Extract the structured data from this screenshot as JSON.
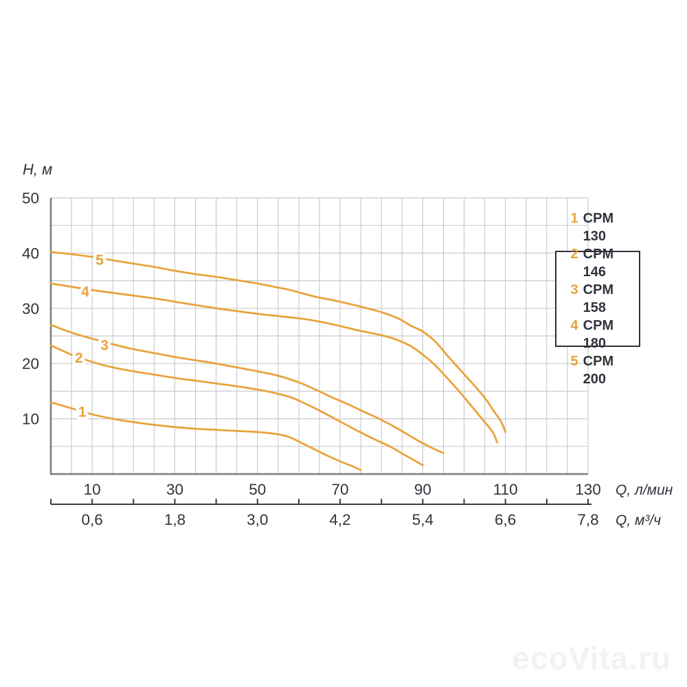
{
  "chart_data": {
    "type": "line",
    "title": "",
    "ylabel": "H, м",
    "xlabel_primary": "Q, л/мин",
    "xlabel_secondary": "Q, м³/ч",
    "xlim": [
      0,
      130
    ],
    "ylim": [
      0,
      50
    ],
    "grid": true,
    "grid_step_x": 5,
    "grid_step_y": 5,
    "y_ticks": [
      50,
      40,
      30,
      20,
      10
    ],
    "x_ticks_primary": [
      10,
      30,
      50,
      70,
      90,
      110,
      130
    ],
    "x_ticks_secondary": {
      "positions": [
        10,
        30,
        50,
        70,
        90,
        110,
        130
      ],
      "labels": [
        "0,6",
        "1,8",
        "3,0",
        "4,2",
        "5,4",
        "6,6",
        "7,8"
      ],
      "tick_mark_every": 10
    },
    "legend": {
      "position": "upper-right",
      "items": [
        {
          "num": "1",
          "label": "CPM 130"
        },
        {
          "num": "2",
          "label": "CPM 146"
        },
        {
          "num": "3",
          "label": "CPM 158"
        },
        {
          "num": "4",
          "label": "CPM 180"
        },
        {
          "num": "5",
          "label": "CPM 200"
        }
      ]
    },
    "series": [
      {
        "num": "1",
        "name": "CPM 130",
        "label_at": [
          7.6,
          11.3
        ],
        "points": [
          [
            0,
            13
          ],
          [
            5,
            11.9
          ],
          [
            10,
            10.8
          ],
          [
            15,
            10
          ],
          [
            20,
            9.4
          ],
          [
            25,
            8.9
          ],
          [
            30,
            8.5
          ],
          [
            35,
            8.2
          ],
          [
            40,
            8.0
          ],
          [
            45,
            7.8
          ],
          [
            50,
            7.6
          ],
          [
            55,
            7.2
          ],
          [
            58,
            6.6
          ],
          [
            61,
            5.5
          ],
          [
            64,
            4.4
          ],
          [
            67,
            3.3
          ],
          [
            70,
            2.3
          ],
          [
            73,
            1.4
          ],
          [
            75,
            0.7
          ]
        ]
      },
      {
        "num": "2",
        "name": "CPM 146",
        "label_at": [
          6.8,
          21.1
        ],
        "points": [
          [
            0,
            23.3
          ],
          [
            5,
            21.6
          ],
          [
            10,
            20.3
          ],
          [
            15,
            19.3
          ],
          [
            20,
            18.6
          ],
          [
            25,
            18
          ],
          [
            30,
            17.4
          ],
          [
            35,
            16.9
          ],
          [
            40,
            16.4
          ],
          [
            45,
            15.9
          ],
          [
            50,
            15.3
          ],
          [
            54,
            14.7
          ],
          [
            58,
            13.9
          ],
          [
            62,
            12.6
          ],
          [
            66,
            11.1
          ],
          [
            70,
            9.5
          ],
          [
            74,
            7.9
          ],
          [
            78,
            6.4
          ],
          [
            82,
            5
          ],
          [
            86,
            3.3
          ],
          [
            90,
            1.6
          ]
        ]
      },
      {
        "num": "3",
        "name": "CPM 158",
        "label_at": [
          13,
          23.4
        ],
        "points": [
          [
            0,
            27
          ],
          [
            5,
            25.6
          ],
          [
            10,
            24.5
          ],
          [
            15,
            23.5
          ],
          [
            20,
            22.6
          ],
          [
            25,
            21.9
          ],
          [
            30,
            21.2
          ],
          [
            35,
            20.6
          ],
          [
            40,
            20
          ],
          [
            45,
            19.3
          ],
          [
            50,
            18.6
          ],
          [
            55,
            17.8
          ],
          [
            60,
            16.6
          ],
          [
            64,
            15.3
          ],
          [
            68,
            13.9
          ],
          [
            72,
            12.6
          ],
          [
            76,
            11.2
          ],
          [
            80,
            9.8
          ],
          [
            84,
            8.2
          ],
          [
            88,
            6.4
          ],
          [
            92,
            4.8
          ],
          [
            95,
            3.8
          ]
        ]
      },
      {
        "num": "4",
        "name": "CPM 180",
        "label_at": [
          8.3,
          33.1
        ],
        "points": [
          [
            0,
            34.5
          ],
          [
            5,
            33.9
          ],
          [
            10,
            33.3
          ],
          [
            15,
            32.8
          ],
          [
            20,
            32.3
          ],
          [
            25,
            31.8
          ],
          [
            30,
            31.2
          ],
          [
            35,
            30.6
          ],
          [
            40,
            30
          ],
          [
            45,
            29.5
          ],
          [
            50,
            29
          ],
          [
            55,
            28.6
          ],
          [
            60,
            28.2
          ],
          [
            65,
            27.6
          ],
          [
            70,
            26.8
          ],
          [
            75,
            25.9
          ],
          [
            79,
            25.3
          ],
          [
            83,
            24.5
          ],
          [
            87,
            23.2
          ],
          [
            90,
            21.6
          ],
          [
            93,
            19.7
          ],
          [
            96,
            17.3
          ],
          [
            99,
            14.8
          ],
          [
            102,
            12.1
          ],
          [
            105,
            9.4
          ],
          [
            107,
            7.5
          ],
          [
            108,
            5.7
          ]
        ]
      },
      {
        "num": "5",
        "name": "CPM 200",
        "label_at": [
          11.8,
          38.8
        ],
        "points": [
          [
            0,
            40.2
          ],
          [
            5,
            39.8
          ],
          [
            10,
            39.3
          ],
          [
            15,
            38.7
          ],
          [
            20,
            38.1
          ],
          [
            25,
            37.5
          ],
          [
            30,
            36.8
          ],
          [
            35,
            36.2
          ],
          [
            40,
            35.7
          ],
          [
            45,
            35.1
          ],
          [
            50,
            34.5
          ],
          [
            54,
            33.9
          ],
          [
            58,
            33.3
          ],
          [
            64,
            32.1
          ],
          [
            70,
            31.2
          ],
          [
            76,
            30.1
          ],
          [
            80,
            29.3
          ],
          [
            84,
            28.2
          ],
          [
            87,
            26.9
          ],
          [
            90,
            25.8
          ],
          [
            93,
            24
          ],
          [
            96,
            21.4
          ],
          [
            99,
            18.9
          ],
          [
            102,
            16.4
          ],
          [
            105,
            13.8
          ],
          [
            107,
            11.6
          ],
          [
            109,
            9.4
          ],
          [
            110,
            7.6
          ]
        ]
      }
    ],
    "colors": {
      "curve": "#E8A33C",
      "grid": "#CBCBCB",
      "axis": "#7D7D7D",
      "scale_line": "#3A3A42",
      "text": "#32323C",
      "legend_border": "#2E2E38"
    }
  },
  "watermark": {
    "text": "ecoVita.ru",
    "color": "#F0F3F4"
  }
}
